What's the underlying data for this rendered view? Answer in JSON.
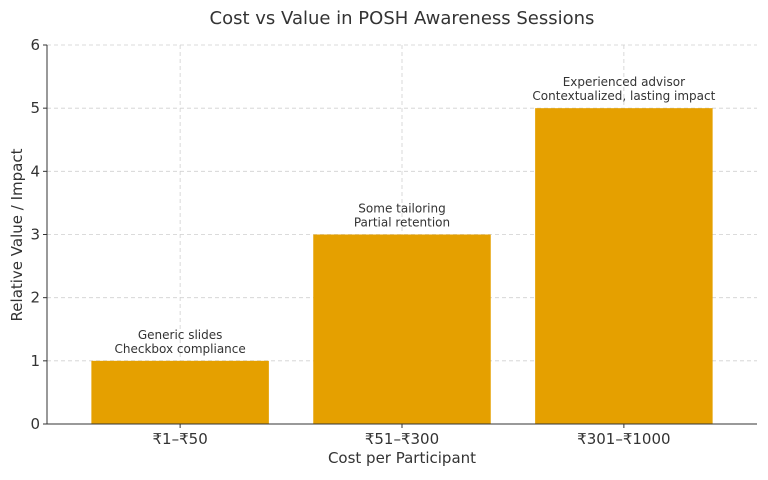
{
  "chart_data": {
    "type": "bar",
    "title": "Cost vs Value in POSH Awareness Sessions",
    "xlabel": "Cost per Participant",
    "ylabel": "Relative Value / Impact",
    "categories": [
      "₹1–₹50",
      "₹51–₹300",
      "₹301–₹1000"
    ],
    "values": [
      1,
      3,
      5
    ],
    "annotations": [
      [
        "Generic slides",
        "Checkbox compliance"
      ],
      [
        "Some tailoring",
        "Partial retention"
      ],
      [
        "Experienced advisor",
        "Contextualized, lasting impact"
      ]
    ],
    "ylim": [
      0,
      6
    ],
    "yticks": [
      0,
      1,
      2,
      3,
      4,
      5,
      6
    ],
    "grid": true,
    "bar_color": "#E5A000",
    "grid_color": "#d0d0d0",
    "text_color": "#333333"
  }
}
